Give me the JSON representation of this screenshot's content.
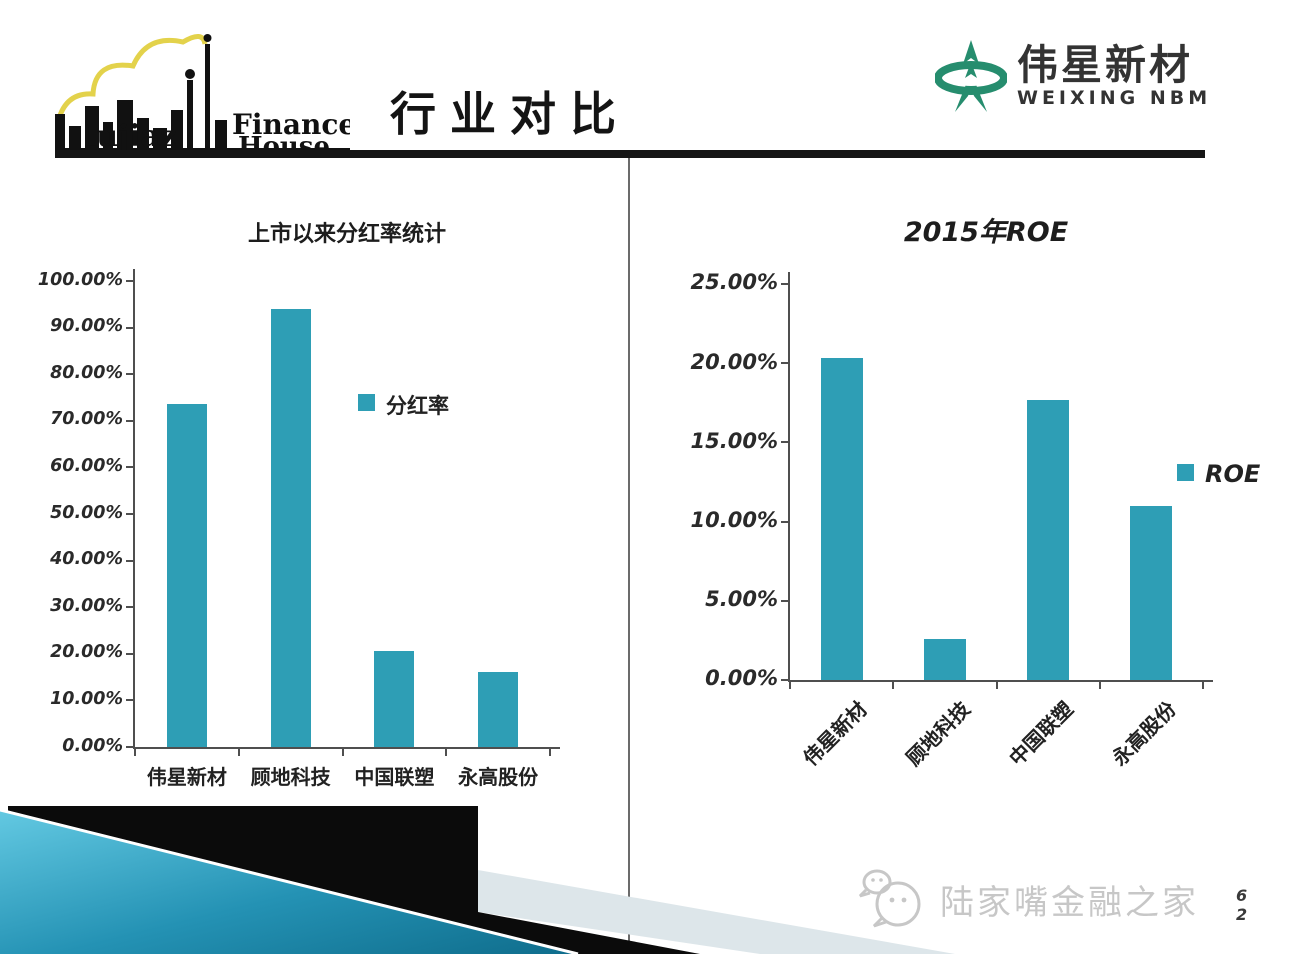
{
  "header": {
    "title": "行业对比",
    "left_logo": {
      "finance": "Finance",
      "house": "House",
      "skyline": "lujiaz"
    },
    "right_logo": {
      "name_cn": "伟星新材",
      "name_en": "WEIXING NBM"
    }
  },
  "chart_data": [
    {
      "type": "bar",
      "title": "上市以来分红率统计",
      "categories": [
        "伟星新材",
        "顾地科技",
        "中国联塑",
        "永高股份"
      ],
      "series": [
        {
          "name": "分红率",
          "values": [
            73.5,
            94.0,
            20.5,
            16.0
          ]
        }
      ],
      "unit": "%",
      "ylim": [
        0,
        100
      ],
      "yticks": [
        "100.00%",
        "90.00%",
        "80.00%",
        "70.00%",
        "60.00%",
        "50.00%",
        "40.00%",
        "30.00%",
        "20.00%",
        "10.00%",
        "0.00%"
      ],
      "legend": {
        "label": "分红率",
        "position": "right"
      },
      "bar_color": "#2E9EB5",
      "grid": false
    },
    {
      "type": "bar",
      "title": "2015年ROE",
      "categories": [
        "伟星新材",
        "顾地科技",
        "中国联塑",
        "永高股份"
      ],
      "series": [
        {
          "name": "ROE",
          "values": [
            20.3,
            2.6,
            17.7,
            11.0
          ]
        }
      ],
      "unit": "%",
      "ylim": [
        0,
        25
      ],
      "yticks": [
        "25.00%",
        "20.00%",
        "15.00%",
        "10.00%",
        "5.00%",
        "0.00%"
      ],
      "legend": {
        "label": "ROE",
        "position": "right"
      },
      "bar_color": "#2E9EB5",
      "grid": false
    }
  ],
  "footer": {
    "watermark": "陆家嘴金融之家",
    "page_number": [
      "6",
      "2"
    ]
  },
  "colors": {
    "bar": "#2E9EB5",
    "logo_green": "#268D6E",
    "logo_yellow": "#E3D24B",
    "watermark_gray": "#C7C7C7",
    "divider": "#6B6B6B"
  }
}
